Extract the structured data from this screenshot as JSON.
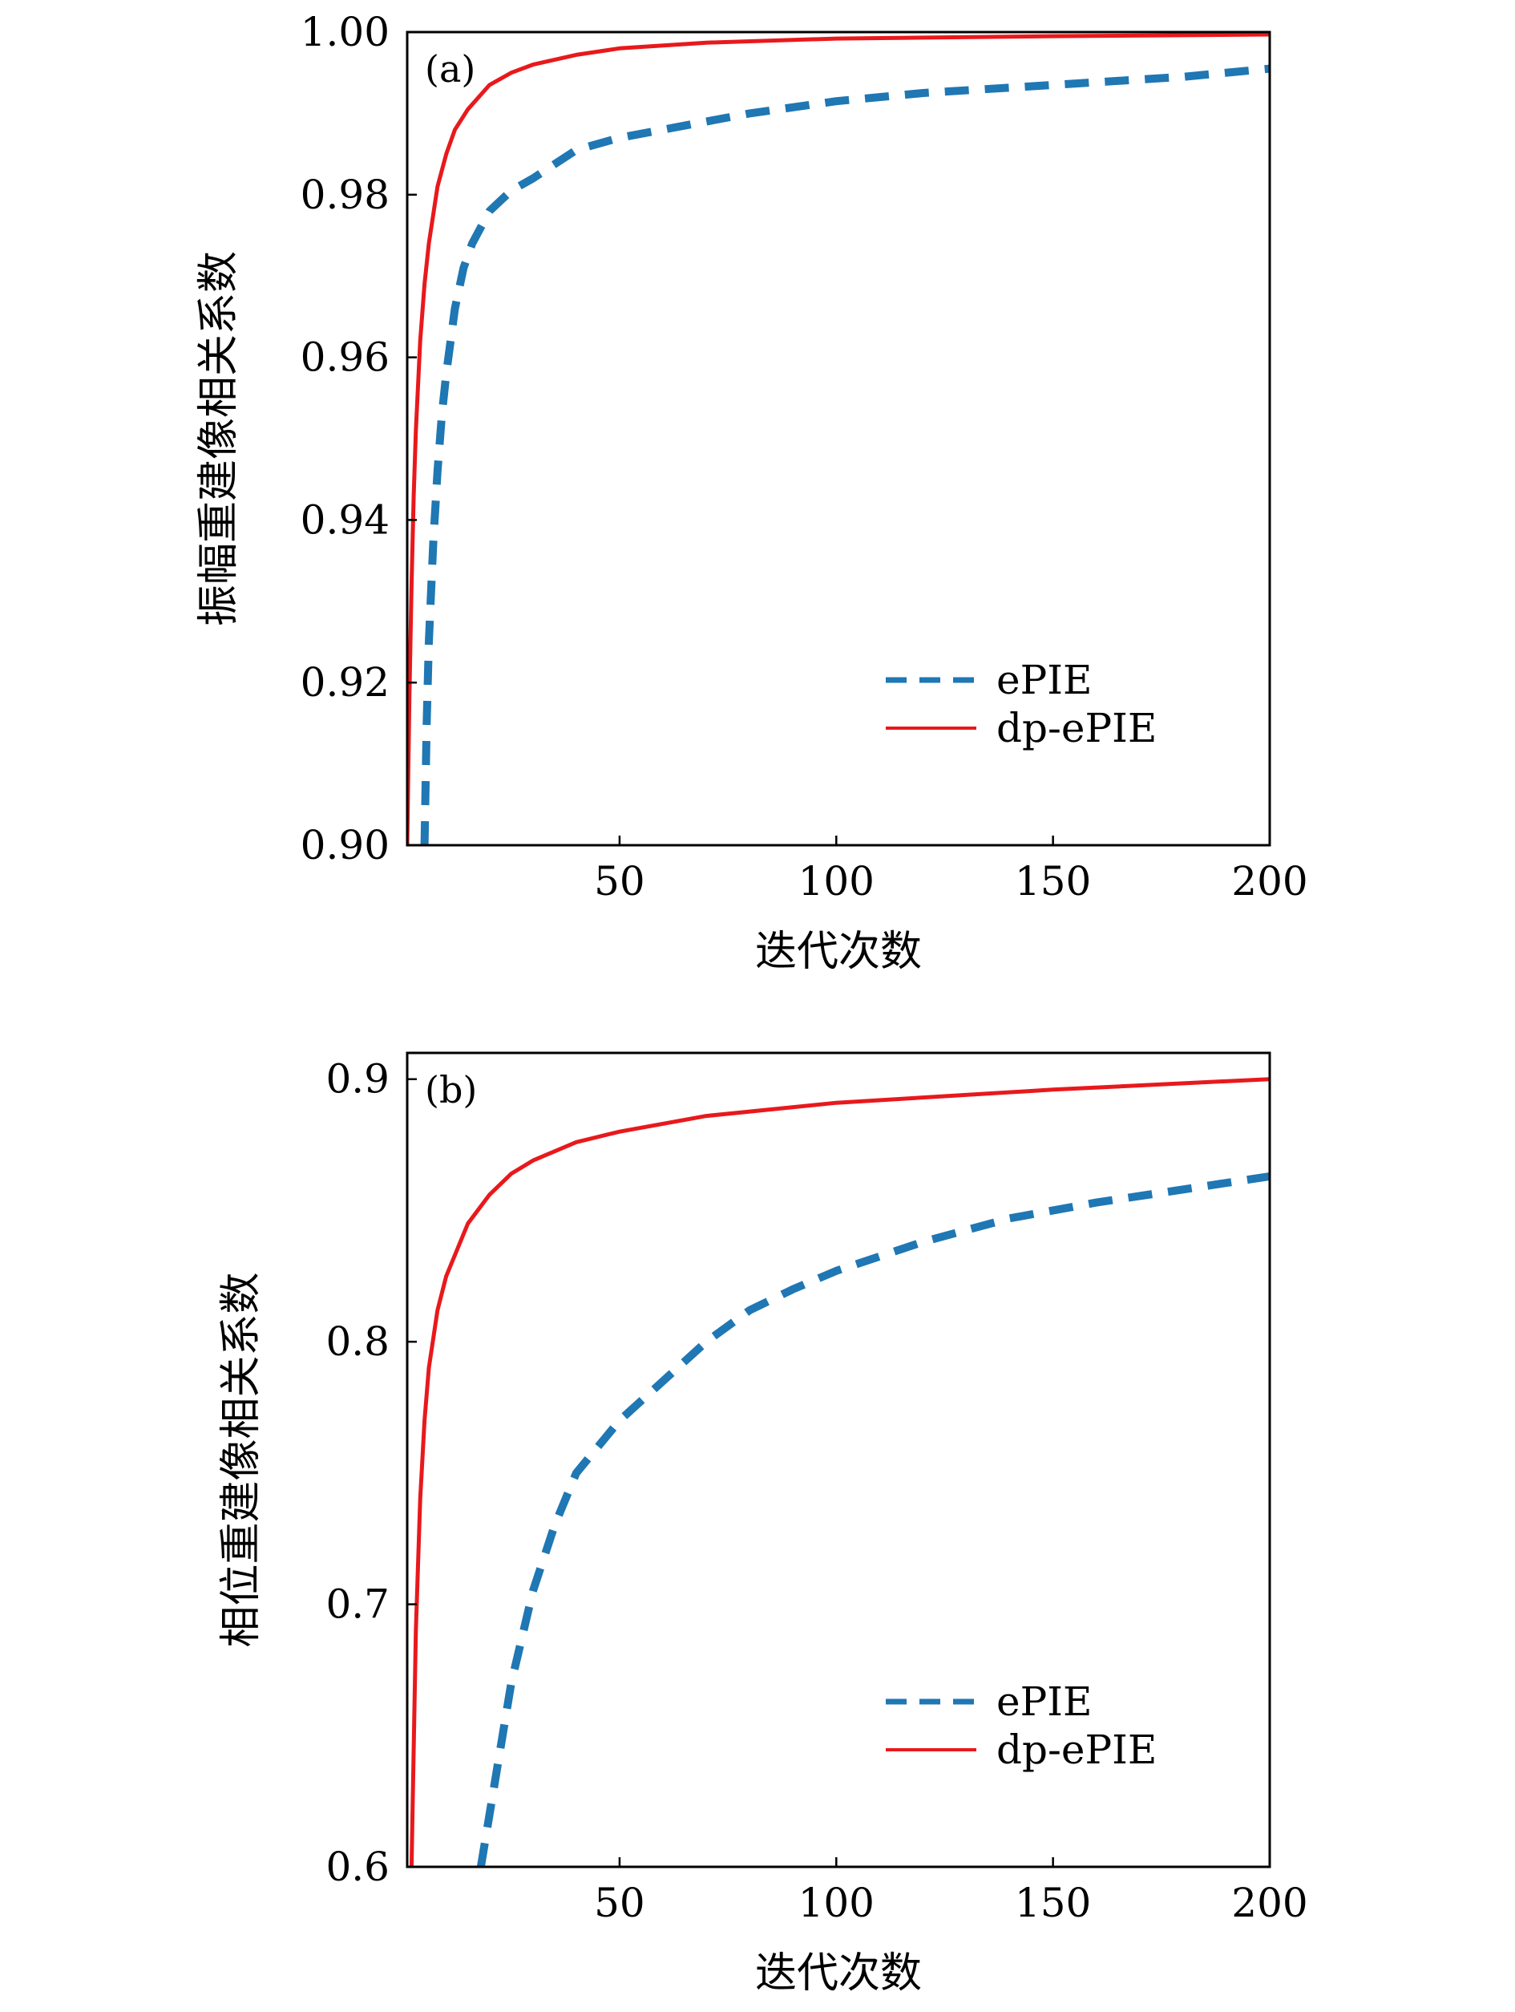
{
  "chart_data": [
    {
      "type": "line",
      "panel_label": "(a)",
      "xlabel": "迭代次数",
      "ylabel": "振幅重建像相关系数",
      "xlim": [
        1,
        200
      ],
      "ylim": [
        0.9,
        1.0
      ],
      "xticks": [
        50,
        100,
        150,
        200
      ],
      "xtick_labels": [
        "50",
        "100",
        "150",
        "200"
      ],
      "yticks": [
        0.9,
        0.92,
        0.94,
        0.96,
        0.98,
        1.0
      ],
      "ytick_labels": [
        "0.90",
        "0.92",
        "0.94",
        "0.96",
        "0.98",
        "1.00"
      ],
      "grid": false,
      "legend_position": "lower-right",
      "series": [
        {
          "name": "ePIE",
          "color": "#1f77b4",
          "style": "dashed",
          "x": [
            5,
            5.5,
            6,
            7,
            8,
            9,
            10,
            12,
            14,
            16,
            18,
            20,
            25,
            30,
            40,
            50,
            60,
            80,
            100,
            120,
            150,
            180,
            200
          ],
          "y": [
            0.9,
            0.915,
            0.925,
            0.937,
            0.946,
            0.953,
            0.958,
            0.966,
            0.971,
            0.974,
            0.976,
            0.978,
            0.9805,
            0.982,
            0.9855,
            0.987,
            0.988,
            0.99,
            0.9915,
            0.9925,
            0.9935,
            0.9945,
            0.9955
          ]
        },
        {
          "name": "dp-ePIE",
          "color": "#e8191c",
          "style": "solid",
          "x": [
            1,
            1.5,
            2,
            2.5,
            3,
            4,
            5,
            6,
            8,
            10,
            12,
            15,
            20,
            25,
            30,
            40,
            50,
            70,
            100,
            150,
            200
          ],
          "y": [
            0.9,
            0.918,
            0.932,
            0.943,
            0.951,
            0.962,
            0.969,
            0.974,
            0.981,
            0.985,
            0.988,
            0.9905,
            0.9935,
            0.995,
            0.996,
            0.9972,
            0.998,
            0.9987,
            0.9992,
            0.9995,
            0.9997
          ]
        }
      ]
    },
    {
      "type": "line",
      "panel_label": "(b)",
      "xlabel": "迭代次数",
      "ylabel": "相位重建像相关系数",
      "xlim": [
        1,
        200
      ],
      "ylim": [
        0.6,
        0.91
      ],
      "xticks": [
        50,
        100,
        150,
        200
      ],
      "xtick_labels": [
        "50",
        "100",
        "150",
        "200"
      ],
      "yticks": [
        0.6,
        0.7,
        0.8,
        0.9
      ],
      "ytick_labels": [
        "0.6",
        "0.7",
        "0.8",
        "0.9"
      ],
      "grid": false,
      "legend_position": "lower-right",
      "series": [
        {
          "name": "ePIE",
          "color": "#1f77b4",
          "style": "dashed",
          "x": [
            18,
            20,
            25,
            30,
            35,
            40,
            50,
            60,
            70,
            80,
            90,
            100,
            120,
            140,
            160,
            180,
            200
          ],
          "y": [
            0.6,
            0.62,
            0.67,
            0.705,
            0.73,
            0.75,
            0.77,
            0.785,
            0.8,
            0.812,
            0.82,
            0.827,
            0.838,
            0.847,
            0.853,
            0.858,
            0.863
          ]
        },
        {
          "name": "dp-ePIE",
          "color": "#e8191c",
          "style": "solid",
          "x": [
            2,
            2.5,
            3,
            4,
            5,
            6,
            8,
            10,
            15,
            20,
            25,
            30,
            40,
            50,
            70,
            100,
            150,
            200
          ],
          "y": [
            0.6,
            0.645,
            0.69,
            0.74,
            0.77,
            0.79,
            0.812,
            0.825,
            0.845,
            0.856,
            0.864,
            0.869,
            0.876,
            0.88,
            0.886,
            0.891,
            0.896,
            0.9
          ]
        }
      ]
    }
  ]
}
